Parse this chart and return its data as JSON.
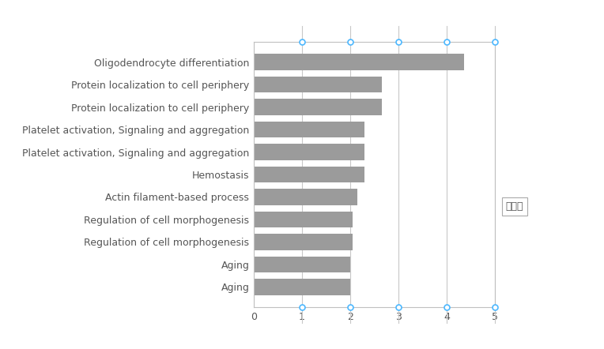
{
  "categories": [
    "Aging",
    "Aging",
    "Regulation of cell morphogenesis",
    "Regulation of cell morphogenesis",
    "Actin filament-based process",
    "Hemostasis",
    "Platelet activation, Signaling and aggregation",
    "Platelet activation, Signaling and aggregation",
    "Protein localization to cell periphery",
    "Protein localization to cell periphery",
    "Oligodendrocyte differentiation"
  ],
  "values": [
    2.0,
    2.0,
    2.05,
    2.05,
    2.15,
    2.3,
    2.3,
    2.3,
    2.65,
    2.65,
    4.35
  ],
  "bar_color": "#9b9b9b",
  "xlim": [
    0,
    5
  ],
  "xticks": [
    0,
    1,
    2,
    3,
    4,
    5
  ],
  "grid_color": "#c8c8c8",
  "dot_color": "#4db8ff",
  "dot_size": 5,
  "dot_linewidth": 1.2,
  "annotation_text": "绘图区",
  "background_color": "#ffffff",
  "bar_height": 0.72,
  "spine_color": "#c0c0c0",
  "label_fontsize": 9,
  "tick_fontsize": 9
}
